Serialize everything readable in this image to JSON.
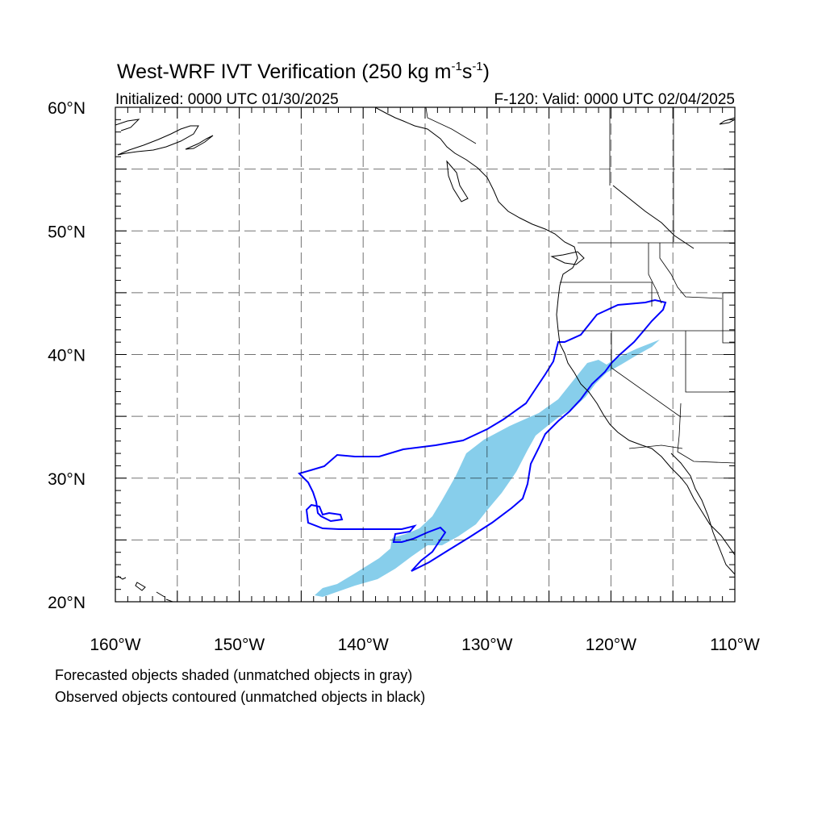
{
  "title": {
    "main": "West-WRF IVT Verification (250 kg m",
    "exp1": "-1",
    "mid": "s",
    "exp2": "-1",
    "close": ")"
  },
  "subtitle_left": "Initialized: 0000 UTC 01/30/2025",
  "subtitle_right": "F-120: Valid: 0000 UTC 02/04/2025",
  "x_ticks": [
    {
      "lon": -160,
      "label": "160°W"
    },
    {
      "lon": -150,
      "label": "150°W"
    },
    {
      "lon": -140,
      "label": "140°W"
    },
    {
      "lon": -130,
      "label": "130°W"
    },
    {
      "lon": -120,
      "label": "120°W"
    },
    {
      "lon": -110,
      "label": "110°W"
    }
  ],
  "y_ticks": [
    {
      "lat": 20,
      "label": "20°N"
    },
    {
      "lat": 30,
      "label": "30°N"
    },
    {
      "lat": 40,
      "label": "40°N"
    },
    {
      "lat": 50,
      "label": "50°N"
    },
    {
      "lat": 60,
      "label": "60°N"
    }
  ],
  "footnote_1": "Forecasted objects shaded (unmatched objects in gray)",
  "footnote_2": "Observed objects contoured (unmatched objects in black)",
  "map": {
    "lon_range": [
      -160,
      -110
    ],
    "lat_range": [
      20,
      60
    ],
    "grid_interval_deg": 5,
    "grid_style": "dashed",
    "colors": {
      "forecast_fill": "#87CEEB",
      "observed_contour": "#0000FF",
      "coastline": "#000000"
    }
  }
}
